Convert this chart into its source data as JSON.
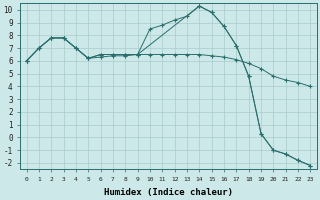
{
  "xlabel": "Humidex (Indice chaleur)",
  "background_color": "#cce8e8",
  "grid_color": "#aacccc",
  "line_color": "#2a6e6e",
  "xlim": [
    -0.5,
    23.5
  ],
  "ylim": [
    -2.5,
    10.5
  ],
  "xticks": [
    0,
    1,
    2,
    3,
    4,
    5,
    6,
    7,
    8,
    9,
    10,
    11,
    12,
    13,
    14,
    15,
    16,
    17,
    18,
    19,
    20,
    21,
    22,
    23
  ],
  "yticks": [
    -2,
    -1,
    0,
    1,
    2,
    3,
    4,
    5,
    6,
    7,
    8,
    9,
    10
  ],
  "lines": [
    {
      "x": [
        0,
        1,
        2,
        3,
        4,
        5,
        6,
        7,
        8,
        9,
        10,
        11,
        12,
        13,
        14,
        15,
        16,
        17,
        18,
        19,
        20,
        21,
        22,
        23
      ],
      "y": [
        6.0,
        7.0,
        7.8,
        7.8,
        7.0,
        6.2,
        6.5,
        6.5,
        6.5,
        6.5,
        8.5,
        8.8,
        9.2,
        9.5,
        10.3,
        9.8,
        8.7,
        7.2,
        4.8,
        0.3,
        -1.0,
        -1.3,
        -1.8,
        -2.2
      ]
    },
    {
      "x": [
        0,
        1,
        2,
        3,
        4,
        5,
        6,
        7,
        8,
        9,
        10,
        11,
        12,
        13,
        14,
        15,
        16,
        17,
        18,
        19,
        20,
        21,
        22,
        23
      ],
      "y": [
        6.0,
        7.0,
        7.8,
        7.8,
        7.0,
        6.2,
        6.3,
        6.4,
        6.4,
        6.5,
        6.5,
        6.5,
        6.5,
        6.5,
        6.5,
        6.4,
        6.3,
        6.1,
        5.8,
        5.4,
        4.8,
        4.5,
        4.3,
        4.0
      ]
    },
    {
      "x": [
        0,
        1,
        2,
        3,
        4,
        5,
        6,
        7,
        8,
        9,
        14,
        15,
        16,
        17,
        18,
        19,
        20,
        21,
        22,
        23
      ],
      "y": [
        6.0,
        7.0,
        7.8,
        7.8,
        7.0,
        6.2,
        6.5,
        6.5,
        6.5,
        6.5,
        10.3,
        9.8,
        8.7,
        7.2,
        4.8,
        0.3,
        -1.0,
        -1.3,
        -1.8,
        -2.2
      ]
    }
  ]
}
